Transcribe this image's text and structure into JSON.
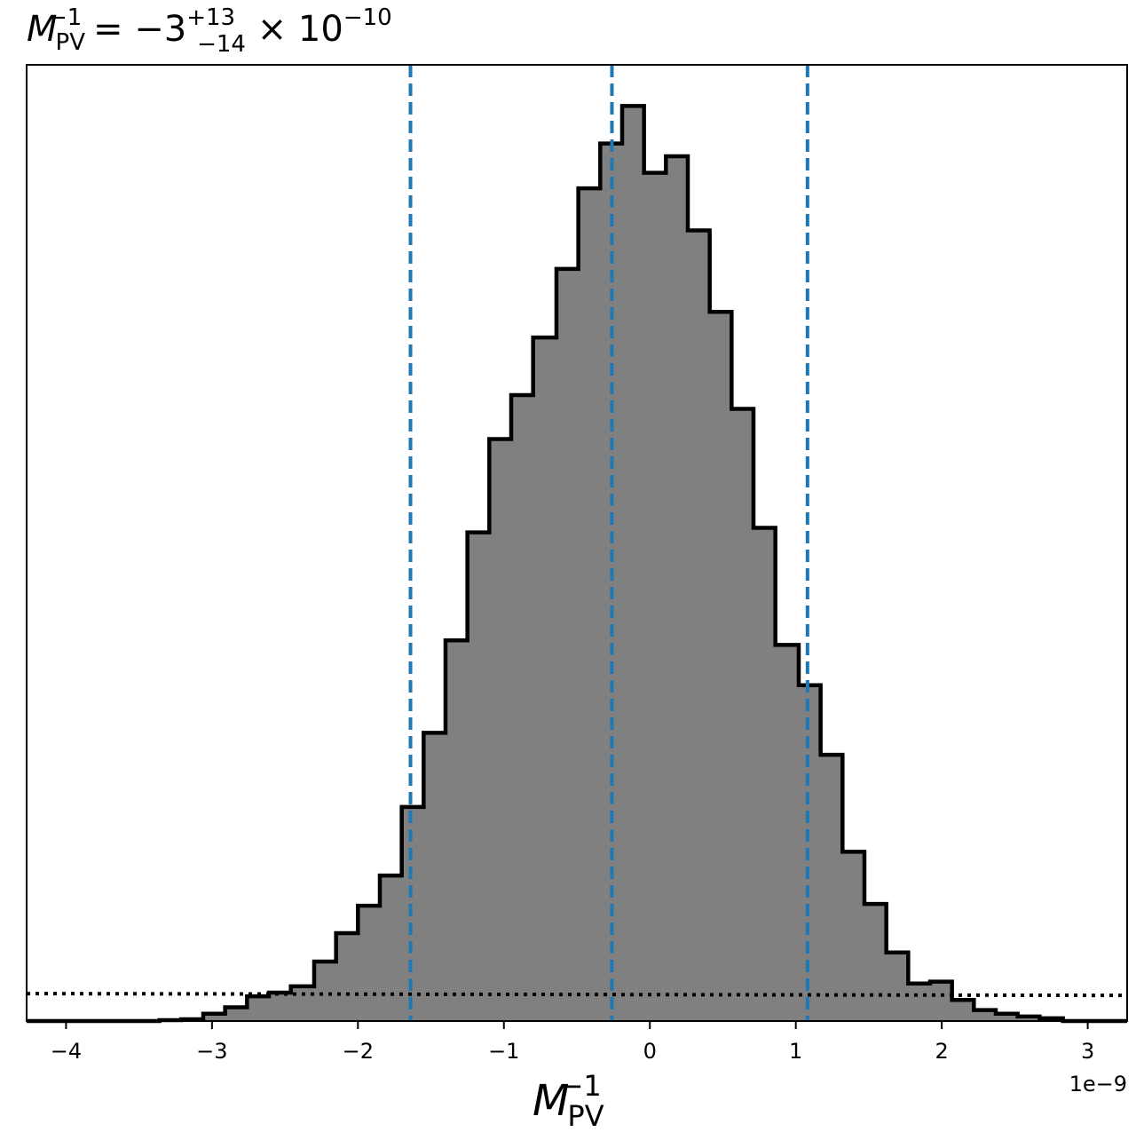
{
  "chart_data": {
    "type": "bar",
    "title": {
      "symbol": "M",
      "sub": "PV",
      "sup": "−1",
      "eq": " = −3",
      "err_up": "+13",
      "err_down": "−14",
      "times": " × 10",
      "exp": "−10"
    },
    "xlabel": {
      "symbol": "M",
      "sub": "PV",
      "sup": "−1"
    },
    "x_offset_label": "1e−9",
    "x_scale": 1e-09,
    "xlim": [
      -4.27,
      3.27
    ],
    "ylim": [
      0,
      1.0
    ],
    "yticks_visible": false,
    "xticks": [
      -4,
      -3,
      -2,
      -1,
      0,
      1,
      2,
      3
    ],
    "xtick_labels": [
      "−4",
      "−3",
      "−2",
      "−1",
      "0",
      "1",
      "2",
      "3"
    ],
    "bin_edges": [
      -4.27,
      -4.12,
      -3.97,
      -3.82,
      -3.66,
      -3.51,
      -3.36,
      -3.21,
      -3.06,
      -2.91,
      -2.76,
      -2.61,
      -2.46,
      -2.3,
      -2.15,
      -2.0,
      -1.85,
      -1.7,
      -1.55,
      -1.4,
      -1.25,
      -1.1,
      -0.95,
      -0.8,
      -0.64,
      -0.49,
      -0.34,
      -0.19,
      -0.04,
      0.11,
      0.26,
      0.41,
      0.56,
      0.71,
      0.86,
      1.02,
      1.17,
      1.32,
      1.47,
      1.62,
      1.77,
      1.92,
      2.07,
      2.22,
      2.37,
      2.52,
      2.67,
      2.83,
      2.98,
      3.13,
      3.27
    ],
    "counts": [
      0,
      0,
      0,
      0,
      0,
      0,
      0.001,
      0.002,
      0.008,
      0.015,
      0.027,
      0.031,
      0.038,
      0.065,
      0.096,
      0.126,
      0.159,
      0.234,
      0.315,
      0.416,
      0.534,
      0.636,
      0.684,
      0.747,
      0.822,
      0.91,
      0.959,
      1.0,
      0.927,
      0.945,
      0.864,
      0.775,
      0.669,
      0.539,
      0.411,
      0.367,
      0.291,
      0.185,
      0.128,
      0.075,
      0.041,
      0.043,
      0.023,
      0.012,
      0.008,
      0.005,
      0.003,
      0,
      0,
      0
    ],
    "fill_color": "#808080",
    "edge_color": "#000000",
    "quantile_lines": {
      "values": [
        -1.64,
        -0.26,
        1.08
      ],
      "color": "#1f77b4",
      "style": "dashed"
    },
    "prior_line": {
      "y_start": 0.03,
      "y_end": 0.028,
      "color": "#000000",
      "style": "dotted"
    },
    "grid": false
  }
}
